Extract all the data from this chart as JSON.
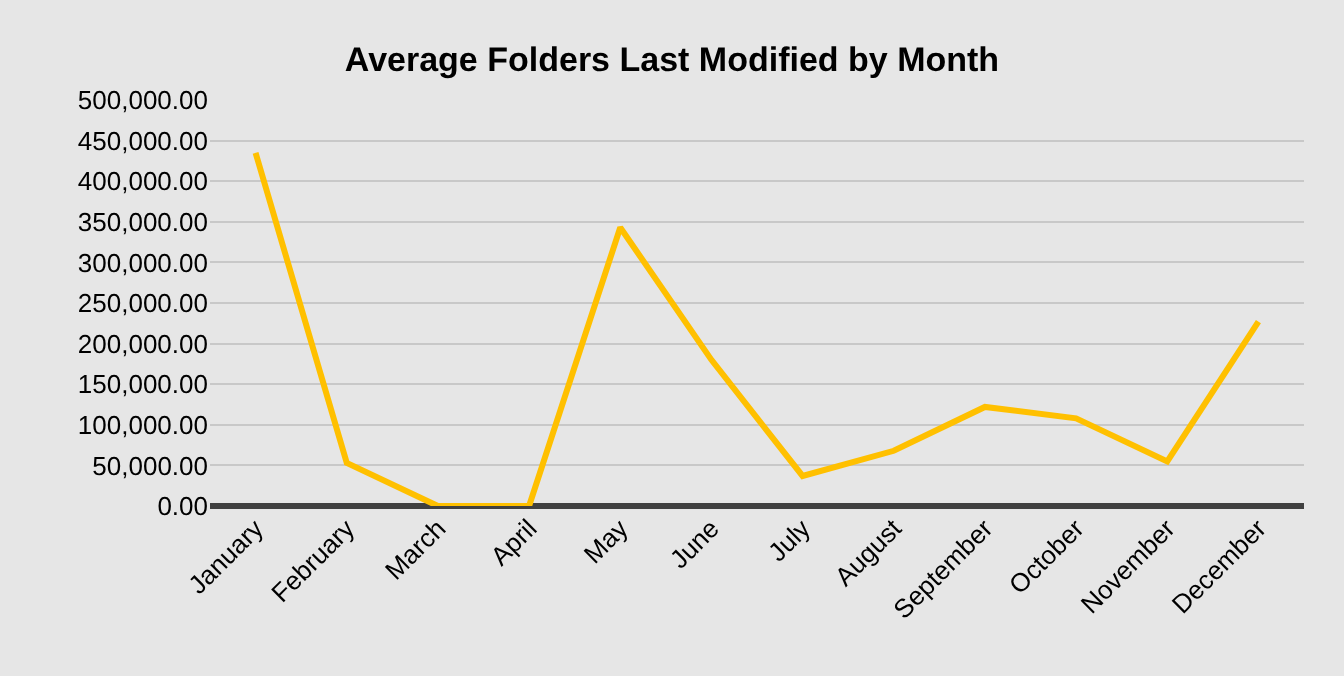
{
  "chart_data": {
    "type": "line",
    "title": "Average Folders Last Modified by Month",
    "categories": [
      "January",
      "February",
      "March",
      "April",
      "May",
      "June",
      "July",
      "August",
      "September",
      "October",
      "November",
      "December"
    ],
    "series": [
      {
        "color": "#ffc000",
        "values": [
          435000,
          53000,
          0,
          0,
          343000,
          180000,
          37000,
          68000,
          122000,
          108000,
          55000,
          227000
        ]
      }
    ],
    "ylim": [
      0,
      500000
    ],
    "yticks": [
      {
        "value": 0,
        "label": "0.00"
      },
      {
        "value": 50000,
        "label": "50,000.00"
      },
      {
        "value": 100000,
        "label": "100,000.00"
      },
      {
        "value": 150000,
        "label": "150,000.00"
      },
      {
        "value": 200000,
        "label": "200,000.00"
      },
      {
        "value": 250000,
        "label": "250,000.00"
      },
      {
        "value": 300000,
        "label": "300,000.00"
      },
      {
        "value": 350000,
        "label": "350,000.00"
      },
      {
        "value": 400000,
        "label": "400,000.00"
      },
      {
        "value": 450000,
        "label": "450,000.00"
      },
      {
        "value": 500000,
        "label": "500,000.00"
      }
    ],
    "grid": "y",
    "marker": "none",
    "line_style": "solid"
  }
}
